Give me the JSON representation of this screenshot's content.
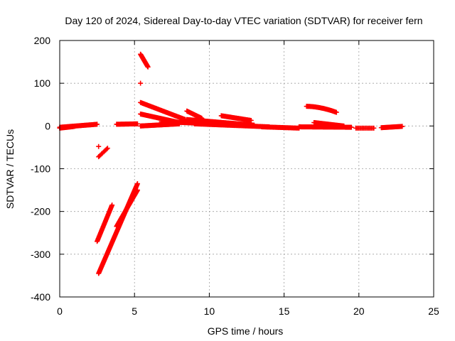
{
  "chart_data": {
    "type": "scatter",
    "title": "Day 120 of 2024, Sidereal Day-to-day VTEC variation (SDTVAR) for receiver fern",
    "xlabel": "GPS time / hours",
    "ylabel": "SDTVAR / TECUs",
    "xlim": [
      0,
      25
    ],
    "ylim": [
      -400,
      200
    ],
    "xticks": [
      0,
      5,
      10,
      15,
      20,
      25
    ],
    "yticks": [
      -400,
      -300,
      -200,
      -100,
      0,
      100,
      200
    ],
    "grid": true,
    "marker": "+",
    "color": "#ff0000",
    "segments": [
      {
        "x0": 0.0,
        "y0": -3,
        "x1": 2.5,
        "y1": 4,
        "n": 50
      },
      {
        "x0": 0.0,
        "y0": -5,
        "x1": 1.0,
        "y1": -1,
        "n": 20
      },
      {
        "x0": 2.6,
        "y0": -48,
        "x1": 2.6,
        "y1": -48,
        "n": 1
      },
      {
        "x0": 2.6,
        "y0": -72,
        "x1": 3.2,
        "y1": -52,
        "n": 10
      },
      {
        "x0": 2.5,
        "y0": -270,
        "x1": 3.5,
        "y1": -185,
        "n": 40
      },
      {
        "x0": 2.6,
        "y0": -345,
        "x1": 5.2,
        "y1": -135,
        "n": 120
      },
      {
        "x0": 3.8,
        "y0": -235,
        "x1": 5.2,
        "y1": -150,
        "n": 60
      },
      {
        "x0": 3.8,
        "y0": 4,
        "x1": 5.2,
        "y1": 5,
        "n": 30
      },
      {
        "x0": 5.4,
        "y0": 168,
        "x1": 5.9,
        "y1": 138,
        "n": 25
      },
      {
        "x0": 5.4,
        "y0": 100,
        "x1": 5.4,
        "y1": 100,
        "n": 1
      },
      {
        "x0": 5.4,
        "y0": 55,
        "x1": 8.4,
        "y1": 15,
        "n": 60
      },
      {
        "x0": 5.4,
        "y0": 28,
        "x1": 8.0,
        "y1": 8,
        "n": 60
      },
      {
        "x0": 5.4,
        "y0": 0,
        "x1": 8.0,
        "y1": 5,
        "n": 60
      },
      {
        "x0": 6.8,
        "y0": 10,
        "x1": 9.0,
        "y1": 7,
        "n": 50
      },
      {
        "x0": 8.5,
        "y0": 35,
        "x1": 9.5,
        "y1": 18,
        "n": 25
      },
      {
        "x0": 8.5,
        "y0": 15,
        "x1": 13.0,
        "y1": 2,
        "n": 90
      },
      {
        "x0": 10.8,
        "y0": 24,
        "x1": 12.8,
        "y1": 13,
        "n": 40
      },
      {
        "x0": 9.0,
        "y0": 5,
        "x1": 14.0,
        "y1": -2,
        "n": 80
      },
      {
        "x0": 13.5,
        "y0": -2,
        "x1": 16.0,
        "y1": -5,
        "n": 40
      },
      {
        "x0": 16.0,
        "y0": -2,
        "x1": 19.5,
        "y1": -3,
        "n": 70
      },
      {
        "x0": 17.0,
        "y0": 8,
        "x1": 19.0,
        "y1": 0,
        "n": 40
      },
      {
        "x0": 19.8,
        "y0": -5,
        "x1": 21.0,
        "y1": -5,
        "n": 15
      },
      {
        "x0": 21.5,
        "y0": -4,
        "x1": 22.9,
        "y1": -1,
        "n": 30
      }
    ],
    "arcs": [
      {
        "x0": 16.5,
        "x1": 18.5,
        "ypeak": 46,
        "yend": 32,
        "n": 40
      }
    ]
  }
}
